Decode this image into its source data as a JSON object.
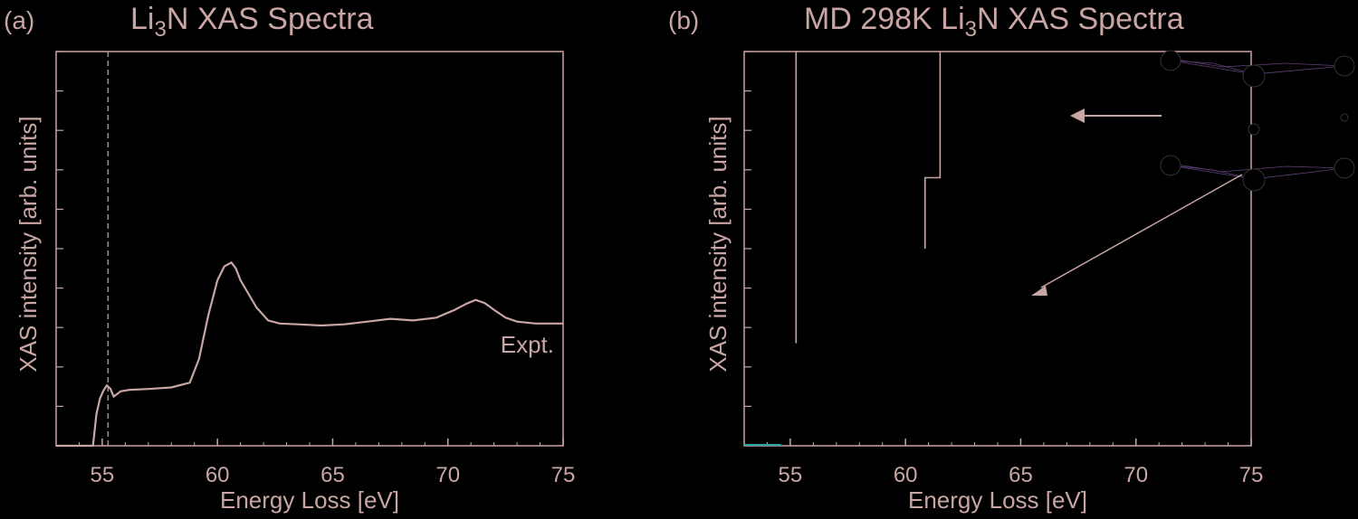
{
  "colors": {
    "background": "#000000",
    "foreground": "#c9a6a4",
    "accent_purple": "#8a5bb0",
    "accent_teal": "#2aa8a0"
  },
  "chart_data": [
    {
      "type": "line",
      "panel_label": "(a)",
      "title_parts": [
        "Li",
        "3",
        "N XAS Spectra"
      ],
      "xlabel": "Energy Loss [eV]",
      "ylabel": "XAS intensity [arb. units]",
      "xlim": [
        53,
        75
      ],
      "ylim": [
        0,
        1
      ],
      "xticks": [
        55,
        60,
        65,
        70,
        75
      ],
      "xtick_labels": [
        "55",
        "60",
        "65",
        "70",
        "75"
      ],
      "series": [
        {
          "name": "Expt.",
          "x": [
            53.0,
            54.6,
            54.75,
            54.9,
            55.05,
            55.2,
            55.35,
            55.5,
            55.8,
            56.2,
            57.0,
            58.0,
            58.8,
            59.2,
            59.6,
            60.0,
            60.3,
            60.6,
            60.8,
            61.0,
            61.3,
            61.7,
            62.2,
            62.7,
            63.5,
            64.5,
            65.5,
            66.5,
            67.5,
            68.5,
            69.5,
            70.3,
            70.8,
            71.2,
            71.6,
            72.0,
            72.5,
            73.0,
            73.8,
            75.0
          ],
          "y": [
            0.0,
            0.0,
            0.08,
            0.12,
            0.14,
            0.153,
            0.145,
            0.125,
            0.138,
            0.142,
            0.144,
            0.148,
            0.16,
            0.22,
            0.33,
            0.42,
            0.455,
            0.465,
            0.45,
            0.42,
            0.39,
            0.35,
            0.318,
            0.31,
            0.308,
            0.305,
            0.308,
            0.315,
            0.322,
            0.318,
            0.325,
            0.345,
            0.36,
            0.37,
            0.362,
            0.345,
            0.325,
            0.315,
            0.31,
            0.31
          ]
        }
      ],
      "vline_x": 55.25
    },
    {
      "type": "line",
      "panel_label": "(b)",
      "title_parts": [
        "MD 298K Li",
        "3",
        "N XAS Spectra"
      ],
      "xlabel": "Energy Loss [eV]",
      "ylabel": "XAS intensity [arb. units]",
      "xlim": [
        53,
        75
      ],
      "ylim": [
        0,
        1
      ],
      "xticks": [
        55,
        60,
        65,
        70,
        75
      ],
      "xtick_labels": [
        "55",
        "60",
        "65",
        "70",
        "75"
      ],
      "step_segments": [
        {
          "x": [
            55.25,
            55.25
          ],
          "y": [
            0.26,
            1.0
          ]
        },
        {
          "x": [
            60.85,
            60.85,
            61.5,
            61.5
          ],
          "y": [
            0.5,
            0.68,
            0.68,
            1.0
          ]
        }
      ],
      "bottom_trace": {
        "x": [
          53.0,
          54.6
        ],
        "y": [
          0.0,
          0.0
        ]
      }
    }
  ]
}
